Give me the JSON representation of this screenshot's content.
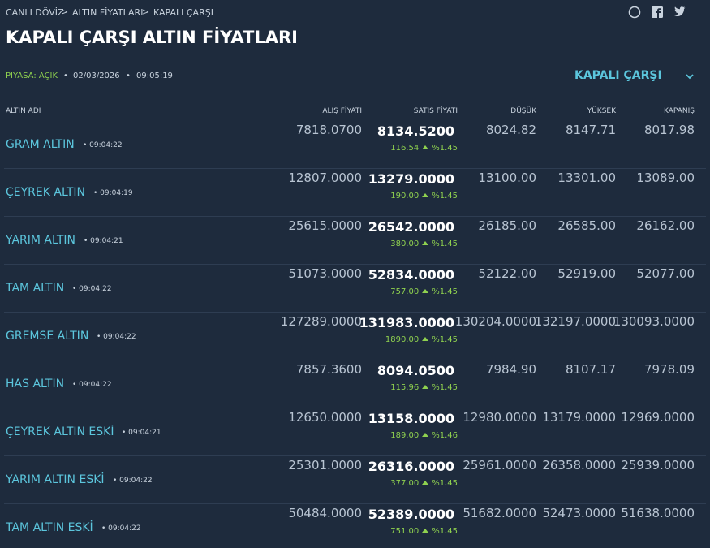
{
  "breadcrumb": [
    "CANLI DÖVİZ",
    "ALTIN FİYATLARI",
    "KAPALI ÇARŞI"
  ],
  "title": "KAPALI ÇARŞI ALTIN FİYATLARI",
  "status": {
    "market": "PİYASA: AÇIK",
    "date": "02/03/2026",
    "time": "09:05:19"
  },
  "dropdown": "KAPALI ÇARŞI",
  "table": {
    "headers": [
      "ALTIN ADI",
      "ALIŞ FİYATI",
      "SATIŞ FİYATI",
      "DÜŞÜK",
      "YÜKSEK",
      "KAPANIŞ"
    ],
    "rows": [
      {
        "name": "GRAM ALTIN",
        "time": "09:04:22",
        "buy": "7818.0700",
        "sell": "8134.5200",
        "change": "116.54",
        "pct": "%1.45",
        "low": "8024.82",
        "high": "8147.71",
        "close": "8017.98"
      },
      {
        "name": "ÇEYREK ALTIN",
        "time": "09:04:19",
        "buy": "12807.0000",
        "sell": "13279.0000",
        "change": "190.00",
        "pct": "%1.45",
        "low": "13100.00",
        "high": "13301.00",
        "close": "13089.00"
      },
      {
        "name": "YARIM ALTIN",
        "time": "09:04:21",
        "buy": "25615.0000",
        "sell": "26542.0000",
        "change": "380.00",
        "pct": "%1.45",
        "low": "26185.00",
        "high": "26585.00",
        "close": "26162.00"
      },
      {
        "name": "TAM ALTIN",
        "time": "09:04:22",
        "buy": "51073.0000",
        "sell": "52834.0000",
        "change": "757.00",
        "pct": "%1.45",
        "low": "52122.00",
        "high": "52919.00",
        "close": "52077.00"
      },
      {
        "name": "GREMSE ALTIN",
        "time": "09:04:22",
        "buy": "127289.0000",
        "sell": "131983.0000",
        "change": "1890.00",
        "pct": "%1.45",
        "low": "130204.0000",
        "high": "132197.0000",
        "close": "130093.0000"
      },
      {
        "name": "HAS ALTIN",
        "time": "09:04:22",
        "buy": "7857.3600",
        "sell": "8094.0500",
        "change": "115.96",
        "pct": "%1.45",
        "low": "7984.90",
        "high": "8107.17",
        "close": "7978.09"
      },
      {
        "name": "ÇEYREK ALTIN ESKİ",
        "time": "09:04:21",
        "buy": "12650.0000",
        "sell": "13158.0000",
        "change": "189.00",
        "pct": "%1.46",
        "low": "12980.0000",
        "high": "13179.0000",
        "close": "12969.0000"
      },
      {
        "name": "YARIM ALTIN ESKİ",
        "time": "09:04:22",
        "buy": "25301.0000",
        "sell": "26316.0000",
        "change": "377.00",
        "pct": "%1.45",
        "low": "25961.0000",
        "high": "26358.0000",
        "close": "25939.0000"
      },
      {
        "name": "TAM ALTIN ESKİ",
        "time": "09:04:22",
        "buy": "50484.0000",
        "sell": "52389.0000",
        "change": "751.00",
        "pct": "%1.45",
        "low": "51682.0000",
        "high": "52473.0000",
        "close": "51638.0000"
      }
    ]
  }
}
